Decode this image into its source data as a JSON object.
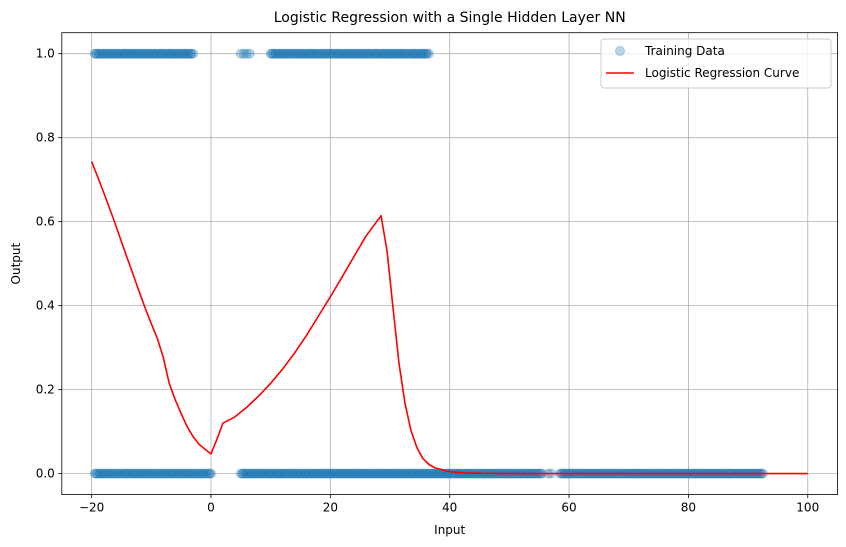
{
  "chart_data": {
    "type": "scatter",
    "title": "Logistic Regression with a Single Hidden Layer NN",
    "xlabel": "Input",
    "ylabel": "Output",
    "xlim": [
      -25,
      105
    ],
    "ylim": [
      -0.05,
      1.05
    ],
    "xticks": [
      -20,
      0,
      20,
      40,
      60,
      80,
      100
    ],
    "xtick_labels": [
      "−20",
      "0",
      "20",
      "40",
      "60",
      "80",
      "100"
    ],
    "yticks": [
      0.0,
      0.2,
      0.4,
      0.6,
      0.8,
      1.0
    ],
    "ytick_labels": [
      "0.0",
      "0.2",
      "0.4",
      "0.6",
      "0.8",
      "1.0"
    ],
    "grid": true,
    "legend_position": "top-right",
    "series": [
      {
        "name": "Training Data",
        "kind": "scatter",
        "color": "#1f77b4",
        "alpha": 0.3,
        "clusters": [
          {
            "y": 1,
            "x_min": -19.5,
            "x_max": -3.0,
            "count": 70
          },
          {
            "y": 1,
            "x_min": 5.0,
            "x_max": 6.5,
            "count": 4
          },
          {
            "y": 1,
            "x_min": 10.0,
            "x_max": 36.5,
            "count": 110
          },
          {
            "y": 0,
            "x_min": -19.5,
            "x_max": 0.0,
            "count": 80
          },
          {
            "y": 0,
            "x_min": 5.0,
            "x_max": 55.5,
            "count": 220
          },
          {
            "y": 0,
            "x_min": 56.5,
            "x_max": 57.0,
            "count": 2
          },
          {
            "y": 0,
            "x_min": 58.5,
            "x_max": 92.5,
            "count": 150
          }
        ]
      },
      {
        "name": "Logistic Regression Curve",
        "kind": "line",
        "color": "#ff0000",
        "x": [
          -20,
          -19,
          -18,
          -17,
          -16,
          -15,
          -14,
          -13,
          -12,
          -11,
          -10,
          -9,
          -8,
          -7,
          -6,
          -5,
          -4,
          -3,
          -2,
          -1,
          0,
          1,
          2,
          4,
          6,
          8,
          10,
          12,
          14,
          16,
          18,
          20,
          22,
          24,
          26,
          28.5,
          29.5,
          30.5,
          31.5,
          32.5,
          33.5,
          34.5,
          35.5,
          36.5,
          37.5,
          38.5,
          39.5,
          40.5,
          42,
          44,
          46,
          48,
          50,
          55,
          60,
          70,
          80,
          90,
          100
        ],
        "y": [
          0.743,
          0.707,
          0.67,
          0.632,
          0.593,
          0.552,
          0.512,
          0.472,
          0.432,
          0.393,
          0.357,
          0.322,
          0.277,
          0.215,
          0.176,
          0.143,
          0.112,
          0.088,
          0.07,
          0.058,
          0.047,
          0.082,
          0.12,
          0.135,
          0.158,
          0.185,
          0.215,
          0.249,
          0.287,
          0.329,
          0.375,
          0.421,
          0.469,
          0.518,
          0.566,
          0.614,
          0.53,
          0.395,
          0.263,
          0.168,
          0.103,
          0.062,
          0.036,
          0.022,
          0.014,
          0.01,
          0.006,
          0.004,
          0.002,
          0.001,
          0.0006,
          0.0003,
          0.0002,
          0.0001,
          0.0,
          0.0,
          0.0,
          0.0,
          0.0
        ]
      }
    ]
  }
}
